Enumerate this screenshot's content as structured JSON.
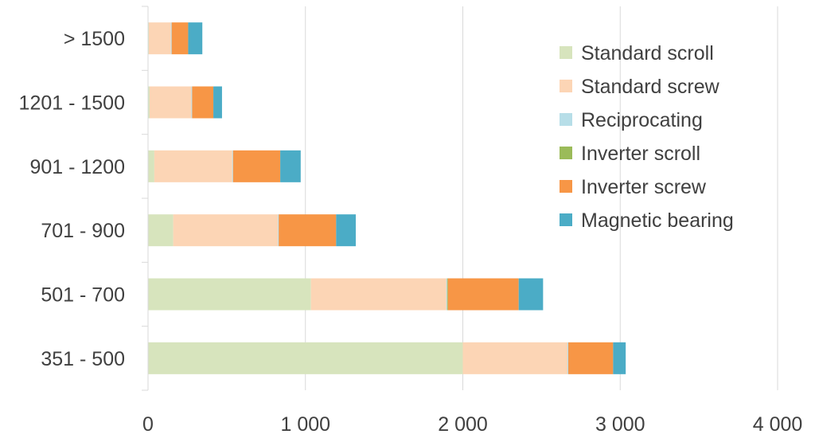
{
  "chart_data": {
    "type": "bar",
    "orientation": "horizontal",
    "stacked": true,
    "categories": [
      "351 - 500",
      "501 - 700",
      "701 - 900",
      "901 - 1200",
      "1201 - 1500",
      "> 1500"
    ],
    "series": [
      {
        "name": "Standard scroll",
        "color": "#d7e4bd",
        "values": [
          2000,
          1035,
          160,
          40,
          10,
          5
        ]
      },
      {
        "name": "Standard screw",
        "color": "#fcd5b5",
        "values": [
          665,
          860,
          665,
          495,
          265,
          140
        ]
      },
      {
        "name": "Reciprocating",
        "color": "#b7dee8",
        "values": [
          5,
          5,
          5,
          5,
          5,
          5
        ]
      },
      {
        "name": "Inverter scroll",
        "color": "#9bbb59",
        "values": [
          0,
          5,
          0,
          0,
          0,
          0
        ]
      },
      {
        "name": "Inverter screw",
        "color": "#f79646",
        "values": [
          285,
          450,
          365,
          300,
          135,
          105
        ]
      },
      {
        "name": "Magnetic bearing",
        "color": "#4bacc6",
        "values": [
          80,
          155,
          125,
          130,
          55,
          90
        ]
      }
    ],
    "xlim": [
      0,
      4000
    ],
    "x_ticks": [
      0,
      1000,
      2000,
      3000,
      4000
    ],
    "x_tick_labels": [
      "0",
      "1 000",
      "2 000",
      "3 000",
      "4 000"
    ],
    "xlabel": "",
    "ylabel": "",
    "title": "",
    "legend_position": "right",
    "grid": "vertical"
  }
}
